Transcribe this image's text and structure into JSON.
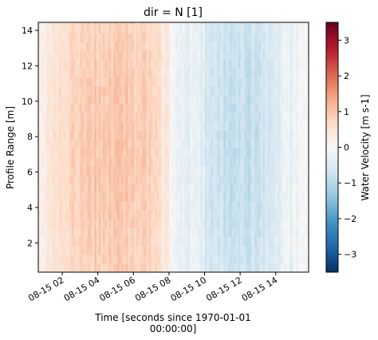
{
  "chart_data": {
    "type": "heatmap",
    "title": "dir = N [1]",
    "xlabel_line1": "Time [seconds since 1970-01-01",
    "xlabel_line2": "00:00:00]",
    "ylabel": "Profile Range [m]",
    "colorbar_label": "Water Velocity [m s-1]",
    "colormap": "RdBu_r",
    "colorbar_colors": [
      "#053061",
      "#2166ac",
      "#4393c3",
      "#92c5de",
      "#d1e5f0",
      "#f7f7f7",
      "#fddbc7",
      "#f4a582",
      "#d6604d",
      "#b2182b",
      "#67001f"
    ],
    "vlim": [
      -3.5,
      3.5
    ],
    "xlim_hours": [
      0.65,
      15.85
    ],
    "ylim": [
      0.35,
      14.45
    ],
    "x_ticks": [
      {
        "hour": 2,
        "label": "08-15 02"
      },
      {
        "hour": 4,
        "label": "08-15 04"
      },
      {
        "hour": 6,
        "label": "08-15 06"
      },
      {
        "hour": 8,
        "label": "08-15 08"
      },
      {
        "hour": 10,
        "label": "08-15 10"
      },
      {
        "hour": 12,
        "label": "08-15 12"
      },
      {
        "hour": 14,
        "label": "08-15 14"
      }
    ],
    "y_ticks": [
      {
        "value": 2,
        "label": "2"
      },
      {
        "value": 4,
        "label": "4"
      },
      {
        "value": 6,
        "label": "6"
      },
      {
        "value": 8,
        "label": "8"
      },
      {
        "value": 10,
        "label": "10"
      },
      {
        "value": 12,
        "label": "12"
      },
      {
        "value": 14,
        "label": "14"
      }
    ],
    "colorbar_ticks": [
      {
        "value": 3,
        "label": "3"
      },
      {
        "value": 2,
        "label": "2"
      },
      {
        "value": 1,
        "label": "1"
      },
      {
        "value": 0,
        "label": "0"
      },
      {
        "value": -1,
        "label": "−1"
      },
      {
        "value": -2,
        "label": "−2"
      },
      {
        "value": -3,
        "label": "−3"
      }
    ],
    "time_profile": [
      {
        "hour": 0.65,
        "v": 0.15
      },
      {
        "hour": 1.5,
        "v": 0.5
      },
      {
        "hour": 2.5,
        "v": 0.75
      },
      {
        "hour": 3.5,
        "v": 0.9
      },
      {
        "hour": 4.5,
        "v": 1.0
      },
      {
        "hour": 5.5,
        "v": 1.0
      },
      {
        "hour": 6.5,
        "v": 0.9
      },
      {
        "hour": 7.2,
        "v": 0.75
      },
      {
        "hour": 7.8,
        "v": 0.4
      },
      {
        "hour": 8.2,
        "v": 0.0
      },
      {
        "hour": 9.0,
        "v": -0.25
      },
      {
        "hour": 10.0,
        "v": -0.5
      },
      {
        "hour": 11.0,
        "v": -0.75
      },
      {
        "hour": 12.0,
        "v": -0.85
      },
      {
        "hour": 13.0,
        "v": -0.7
      },
      {
        "hour": 14.0,
        "v": -0.45
      },
      {
        "hour": 15.0,
        "v": -0.2
      },
      {
        "hour": 15.85,
        "v": -0.05
      }
    ]
  }
}
